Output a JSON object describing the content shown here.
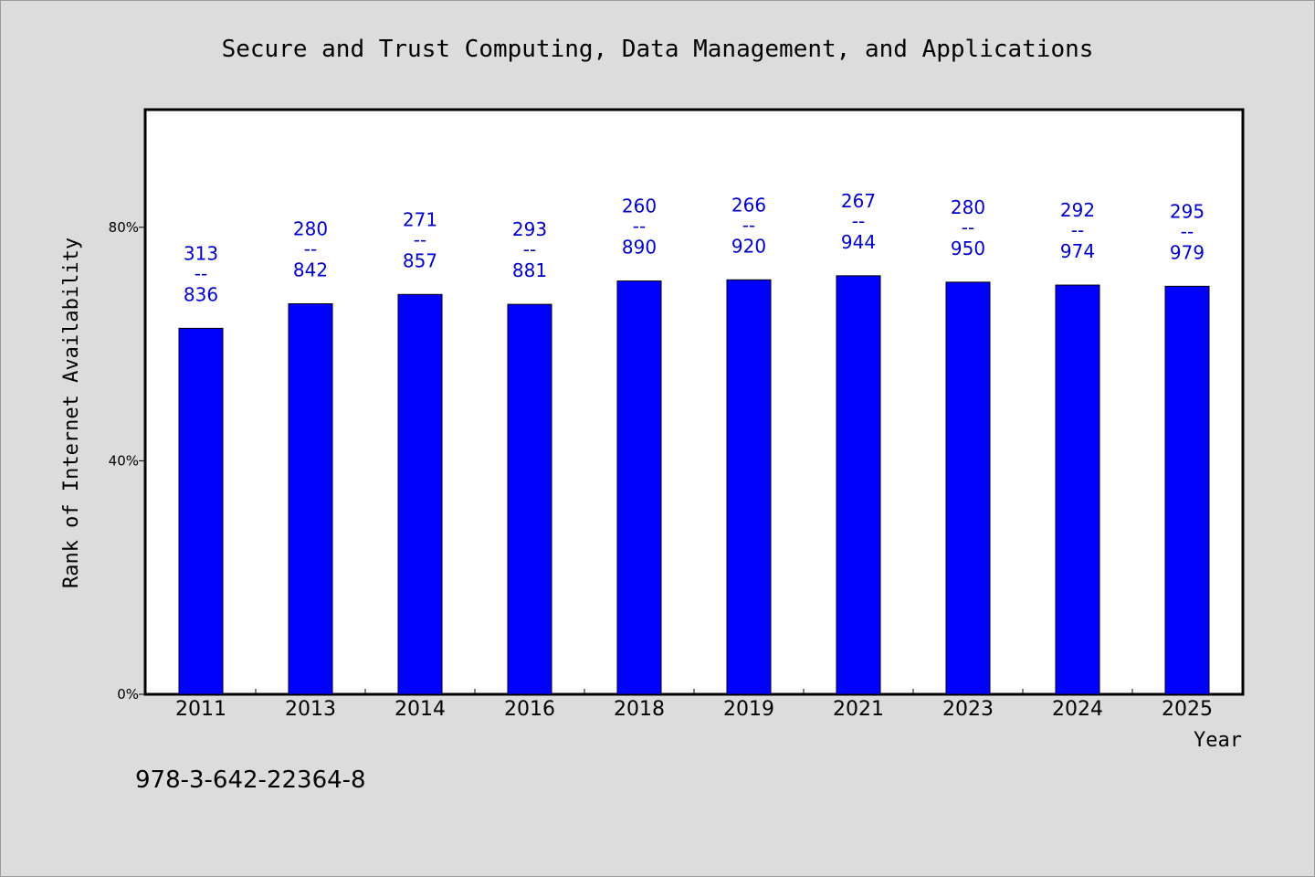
{
  "chart_data": {
    "type": "bar",
    "title": "Secure and Trust Computing, Data Management, and Applications",
    "xlabel": "Year",
    "ylabel": "Rank of Internet Availability",
    "categories": [
      "2011",
      "2013",
      "2014",
      "2016",
      "2018",
      "2019",
      "2021",
      "2023",
      "2024",
      "2025"
    ],
    "values": [
      62.7,
      66.9,
      68.5,
      66.8,
      70.8,
      71.0,
      71.7,
      70.6,
      70.1,
      69.9
    ],
    "data_labels": [
      {
        "top": "313",
        "sep": "--",
        "bottom": "836"
      },
      {
        "top": "280",
        "sep": "--",
        "bottom": "842"
      },
      {
        "top": "271",
        "sep": "--",
        "bottom": "857"
      },
      {
        "top": "293",
        "sep": "--",
        "bottom": "881"
      },
      {
        "top": "260",
        "sep": "--",
        "bottom": "890"
      },
      {
        "top": "266",
        "sep": "--",
        "bottom": "920"
      },
      {
        "top": "267",
        "sep": "--",
        "bottom": "944"
      },
      {
        "top": "280",
        "sep": "--",
        "bottom": "950"
      },
      {
        "top": "292",
        "sep": "--",
        "bottom": "974"
      },
      {
        "top": "295",
        "sep": "--",
        "bottom": "979"
      }
    ],
    "ylim": [
      0,
      100
    ],
    "yticks": [
      0,
      40,
      80
    ],
    "ytick_labels": [
      "0%",
      "40%",
      "80%"
    ],
    "grid": false,
    "legend": "none",
    "colors": {
      "bar_fill": "#0000ff",
      "bar_stroke": "#000000",
      "label_text": "#0000cc",
      "plot_background": "#ffffff",
      "page_background": "#dcdcdc"
    }
  },
  "footer": {
    "isbn": "978-3-642-22364-8"
  }
}
